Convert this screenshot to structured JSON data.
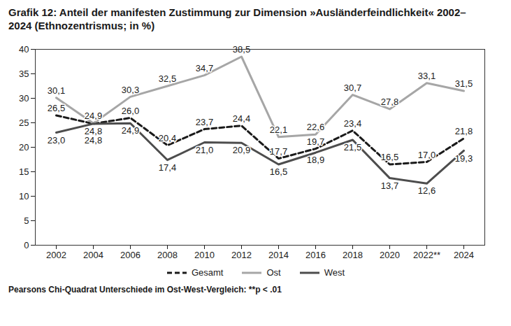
{
  "chart_data": {
    "type": "line",
    "title": "Grafik 12: Anteil der manifesten Zustimmung zur Dimension »Ausländerfeindlichkeit« 2002–2024 (Ethnozentrismus; in %)",
    "caption": "Pearsons Chi-Quadrat Unterschiede im Ost-West-Vergleich: **p < .01",
    "categories": [
      "2002",
      "2004",
      "2006",
      "2008",
      "2010",
      "2012",
      "2014",
      "2016",
      "2018",
      "2020",
      "2022**",
      "2024"
    ],
    "series": [
      {
        "name": "Gesamt",
        "color": "#1a1a1a",
        "line_style": "dashed",
        "values": [
          26.5,
          24.8,
          26.0,
          20.4,
          23.7,
          24.4,
          17.7,
          19.7,
          23.4,
          16.5,
          17.0,
          21.8
        ],
        "value_labels": [
          "26,5",
          "24,8",
          "26,0",
          "20,4",
          "23,7",
          "24,4",
          "17,7",
          "19,7",
          "23,4",
          "16,5",
          "17,0",
          "21,8"
        ]
      },
      {
        "name": "Ost",
        "color": "#a6a6a6",
        "line_style": "solid",
        "values": [
          30.1,
          24.9,
          30.3,
          32.5,
          34.7,
          38.5,
          22.1,
          22.6,
          30.7,
          27.8,
          33.1,
          31.5
        ],
        "value_labels": [
          "30,1",
          "24,9",
          "30,3",
          "32,5",
          "34,7",
          "38,5",
          "22,1",
          "22,6",
          "30,7",
          "27,8",
          "33,1",
          "31,5"
        ]
      },
      {
        "name": "West",
        "color": "#4d4d4d",
        "line_style": "solid",
        "values": [
          23.0,
          24.8,
          24.9,
          17.4,
          21.0,
          20.9,
          16.5,
          18.9,
          21.5,
          13.7,
          12.6,
          19.3
        ],
        "value_labels": [
          "23,0",
          "24,8",
          "24,9",
          "17,4",
          "21,0",
          "20,9",
          "16,5",
          "18,9",
          "21,5",
          "13,7",
          "12,6",
          "19,3"
        ]
      }
    ],
    "ylim": [
      0,
      40
    ],
    "yticks": [
      0,
      5,
      10,
      15,
      20,
      25,
      30,
      35,
      40
    ],
    "grid": false,
    "data_labels": true,
    "legend": "bottom"
  }
}
